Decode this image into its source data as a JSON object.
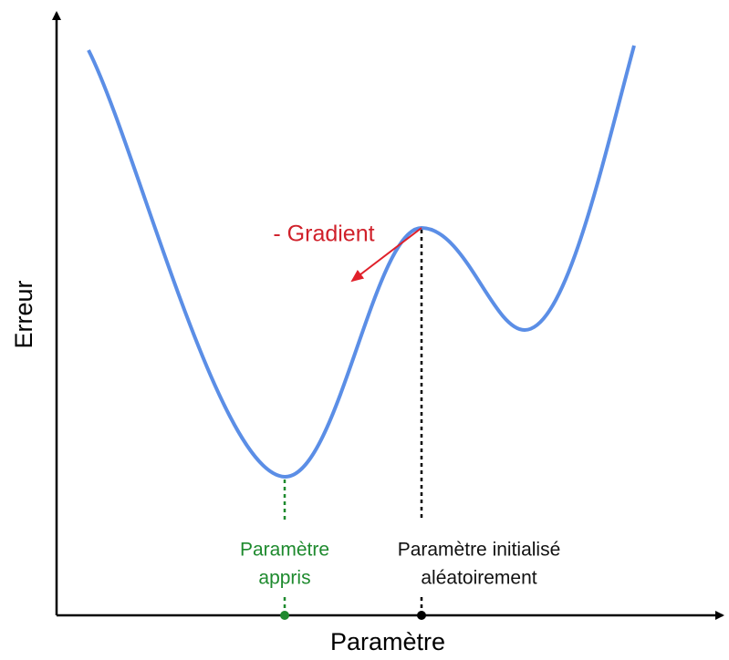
{
  "axes": {
    "y_label": "Erreur",
    "x_label": "Paramètre"
  },
  "annotations": {
    "gradient": "- Gradient",
    "learned": [
      "Paramètre",
      "appris"
    ],
    "initial": [
      "Paramètre initialisé",
      "aléatoirement"
    ]
  }
}
